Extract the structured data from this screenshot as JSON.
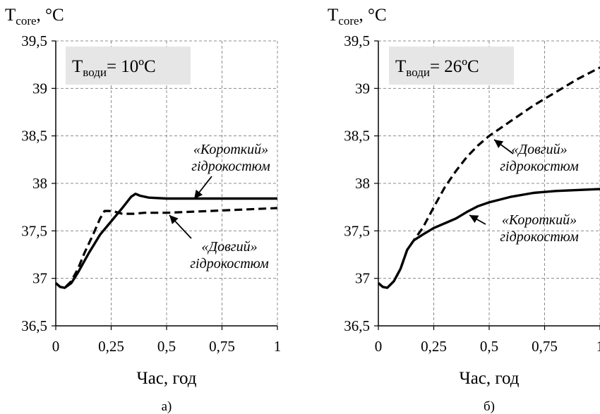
{
  "chart_data": [
    {
      "type": "line",
      "panel_label": "а)",
      "ylabel_main": "T",
      "ylabel_sub": "core",
      "ylabel_unit": ", °C",
      "xlabel": "Час, год",
      "xlim": [
        0,
        1
      ],
      "ylim": [
        36.5,
        39.5
      ],
      "x_ticks": [
        0,
        0.25,
        0.5,
        0.75,
        1
      ],
      "x_tick_labels": [
        "0",
        "0,25",
        "0,5",
        "0,75",
        "1"
      ],
      "y_ticks": [
        36.5,
        37,
        37.5,
        38,
        38.5,
        39,
        39.5
      ],
      "y_tick_labels": [
        "36,5",
        "37",
        "37,5",
        "38",
        "38,5",
        "39",
        "39,5"
      ],
      "grid": true,
      "condition_box": {
        "main": "T",
        "sub": "води",
        "rest": "= 10ºC"
      },
      "series": [
        {
          "style": "solid",
          "label_line1": "«Короткий»",
          "label_line2": "гідрокостюм",
          "x": [
            0,
            0.02,
            0.04,
            0.07,
            0.1,
            0.15,
            0.2,
            0.25,
            0.3,
            0.34,
            0.36,
            0.38,
            0.42,
            0.5,
            0.6,
            0.7,
            0.8,
            0.9,
            1.0
          ],
          "y": [
            36.95,
            36.91,
            36.9,
            36.95,
            37.06,
            37.27,
            37.46,
            37.6,
            37.74,
            37.86,
            37.89,
            37.87,
            37.85,
            37.84,
            37.84,
            37.84,
            37.84,
            37.84,
            37.84
          ]
        },
        {
          "style": "dashed",
          "label_line1": "«Довгий»",
          "label_line2": "гідрокостюм",
          "x": [
            0,
            0.02,
            0.04,
            0.07,
            0.1,
            0.13,
            0.17,
            0.2,
            0.22,
            0.24,
            0.27,
            0.3,
            0.35,
            0.4,
            0.5,
            0.6,
            0.7,
            0.8,
            0.9,
            1.0
          ],
          "y": [
            36.95,
            36.91,
            36.9,
            36.97,
            37.1,
            37.27,
            37.47,
            37.63,
            37.71,
            37.71,
            37.7,
            37.68,
            37.68,
            37.69,
            37.69,
            37.7,
            37.71,
            37.72,
            37.73,
            37.74
          ]
        }
      ]
    },
    {
      "type": "line",
      "panel_label": "б)",
      "ylabel_main": "T",
      "ylabel_sub": "core",
      "ylabel_unit": ", °C",
      "xlabel": "Час, год",
      "xlim": [
        0,
        1
      ],
      "ylim": [
        36.5,
        39.5
      ],
      "x_ticks": [
        0,
        0.25,
        0.5,
        0.75,
        1
      ],
      "x_tick_labels": [
        "0",
        "0,25",
        "0,5",
        "0,75",
        "1"
      ],
      "y_ticks": [
        36.5,
        37,
        37.5,
        38,
        38.5,
        39,
        39.5
      ],
      "y_tick_labels": [
        "36,5",
        "37",
        "37,5",
        "38",
        "38,5",
        "39",
        "39,5"
      ],
      "grid": true,
      "condition_box": {
        "main": "T",
        "sub": "води",
        "rest": "= 26ºC"
      },
      "series": [
        {
          "style": "dashed",
          "label_line1": "«Довгий»",
          "label_line2": "гідрокостюм",
          "x": [
            0,
            0.02,
            0.04,
            0.07,
            0.1,
            0.13,
            0.16,
            0.2,
            0.25,
            0.3,
            0.35,
            0.4,
            0.45,
            0.5,
            0.55,
            0.6,
            0.7,
            0.8,
            0.9,
            1.0
          ],
          "y": [
            36.95,
            36.91,
            36.9,
            36.97,
            37.1,
            37.3,
            37.4,
            37.53,
            37.75,
            37.96,
            38.13,
            38.28,
            38.4,
            38.5,
            38.58,
            38.66,
            38.82,
            38.96,
            39.1,
            39.22
          ]
        },
        {
          "style": "solid",
          "label_line1": "«Короткий»",
          "label_line2": "гідрокостюм",
          "x": [
            0,
            0.02,
            0.04,
            0.07,
            0.1,
            0.13,
            0.16,
            0.2,
            0.25,
            0.3,
            0.35,
            0.4,
            0.45,
            0.5,
            0.6,
            0.7,
            0.8,
            0.9,
            1.0
          ],
          "y": [
            36.95,
            36.91,
            36.9,
            36.97,
            37.1,
            37.3,
            37.4,
            37.46,
            37.53,
            37.58,
            37.63,
            37.7,
            37.76,
            37.8,
            37.86,
            37.9,
            37.92,
            37.93,
            37.94
          ]
        }
      ]
    }
  ]
}
